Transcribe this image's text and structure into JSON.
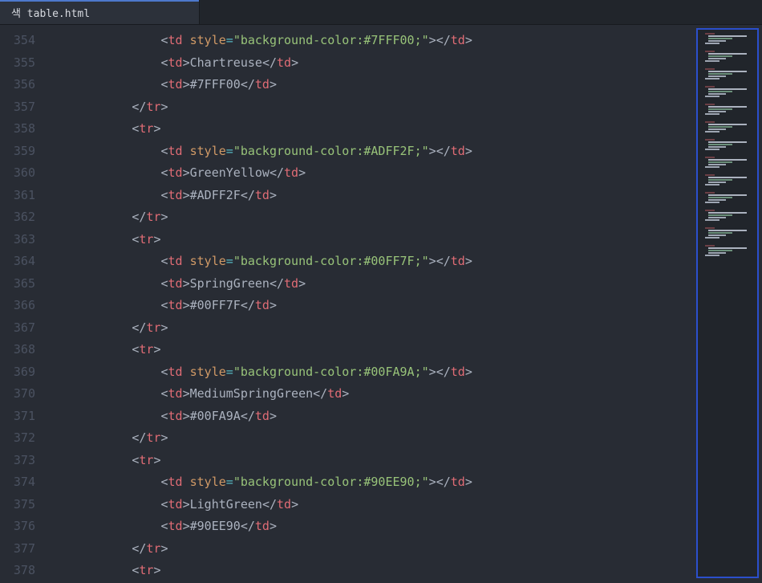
{
  "tab_title": "색 table.html",
  "line_start": 354,
  "line_count": 25,
  "syntax_colors": {
    "punct": "#abb2bf",
    "tag": "#e06c75",
    "attr": "#d19a66",
    "op": "#56b6c2",
    "string": "#98c379",
    "text": "#abb2bf"
  },
  "indent_per_level": 4,
  "minimap": {
    "border_color": "#2b4fcc",
    "group_count": 13,
    "row_colors": [
      "#6b3f45",
      "#abb2bf",
      "#6b8f7a",
      "#9ea6b3",
      "#9ea6b3"
    ],
    "rows_per_group": 5
  },
  "code_lines": [
    {
      "indent": 4,
      "kind": "td_style",
      "style_text": "background-color:#7FFF00;"
    },
    {
      "indent": 4,
      "kind": "td_text",
      "text": "Chartreuse"
    },
    {
      "indent": 4,
      "kind": "td_text",
      "text": "#7FFF00"
    },
    {
      "indent": 3,
      "kind": "close",
      "tag": "tr"
    },
    {
      "indent": 3,
      "kind": "open",
      "tag": "tr"
    },
    {
      "indent": 4,
      "kind": "td_style",
      "style_text": "background-color:#ADFF2F;"
    },
    {
      "indent": 4,
      "kind": "td_text",
      "text": "GreenYellow"
    },
    {
      "indent": 4,
      "kind": "td_text",
      "text": "#ADFF2F"
    },
    {
      "indent": 3,
      "kind": "close",
      "tag": "tr"
    },
    {
      "indent": 3,
      "kind": "open",
      "tag": "tr"
    },
    {
      "indent": 4,
      "kind": "td_style",
      "style_text": "background-color:#00FF7F;"
    },
    {
      "indent": 4,
      "kind": "td_text",
      "text": "SpringGreen"
    },
    {
      "indent": 4,
      "kind": "td_text",
      "text": "#00FF7F"
    },
    {
      "indent": 3,
      "kind": "close",
      "tag": "tr"
    },
    {
      "indent": 3,
      "kind": "open",
      "tag": "tr"
    },
    {
      "indent": 4,
      "kind": "td_style",
      "style_text": "background-color:#00FA9A;"
    },
    {
      "indent": 4,
      "kind": "td_text",
      "text": "MediumSpringGreen"
    },
    {
      "indent": 4,
      "kind": "td_text",
      "text": "#00FA9A"
    },
    {
      "indent": 3,
      "kind": "close",
      "tag": "tr"
    },
    {
      "indent": 3,
      "kind": "open",
      "tag": "tr"
    },
    {
      "indent": 4,
      "kind": "td_style",
      "style_text": "background-color:#90EE90;"
    },
    {
      "indent": 4,
      "kind": "td_text",
      "text": "LightGreen"
    },
    {
      "indent": 4,
      "kind": "td_text",
      "text": "#90EE90"
    },
    {
      "indent": 3,
      "kind": "close",
      "tag": "tr"
    },
    {
      "indent": 3,
      "kind": "open",
      "tag": "tr"
    }
  ]
}
